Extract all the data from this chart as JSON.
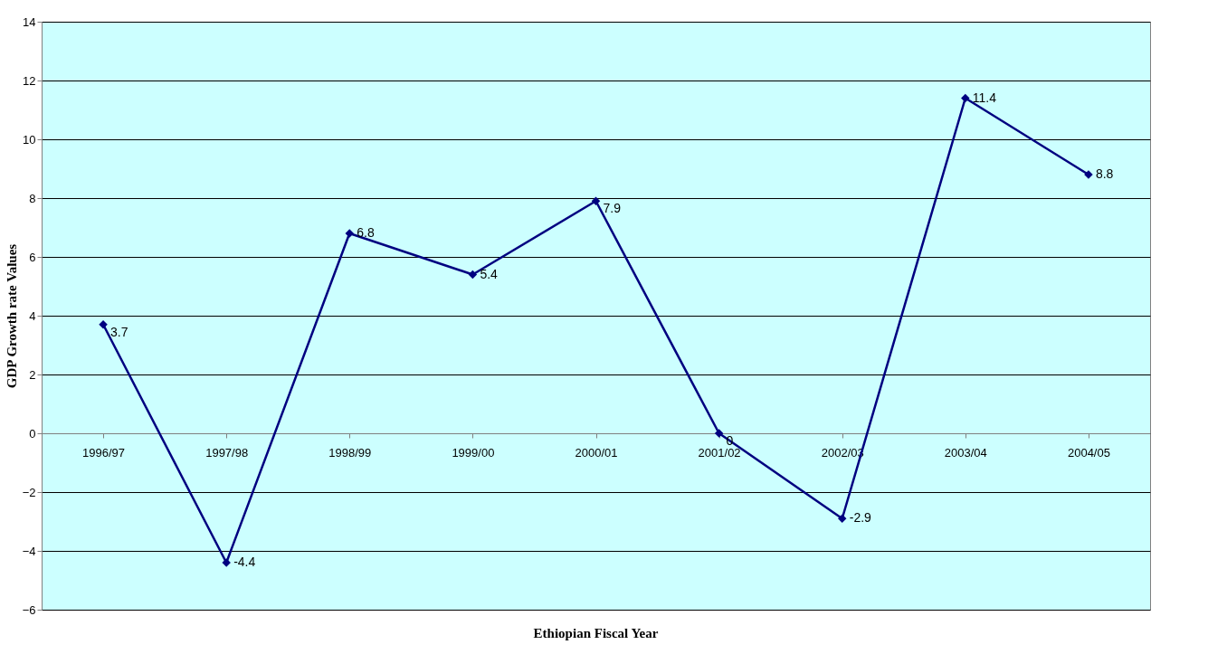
{
  "chart_data": {
    "type": "line",
    "xlabel": "Ethiopian Fiscal Year",
    "ylabel": "GDP Growth rate Values",
    "categories": [
      "1996/97",
      "1997/98",
      "1998/99",
      "1999/00",
      "2000/01",
      "2001/02",
      "2002/03",
      "2003/04",
      "2004/05"
    ],
    "series": [
      {
        "color": "#000080",
        "values": [
          3.7,
          -4.4,
          6.8,
          5.4,
          7.9,
          0,
          -2.9,
          11.4,
          8.8
        ]
      }
    ],
    "ylim": [
      -6,
      14
    ],
    "yticks": [
      -6,
      -4,
      -2,
      0,
      2,
      4,
      6,
      8,
      10,
      12,
      14
    ],
    "grid": "y",
    "marker": "diamond",
    "line_style": "solid",
    "data_labels": true
  }
}
